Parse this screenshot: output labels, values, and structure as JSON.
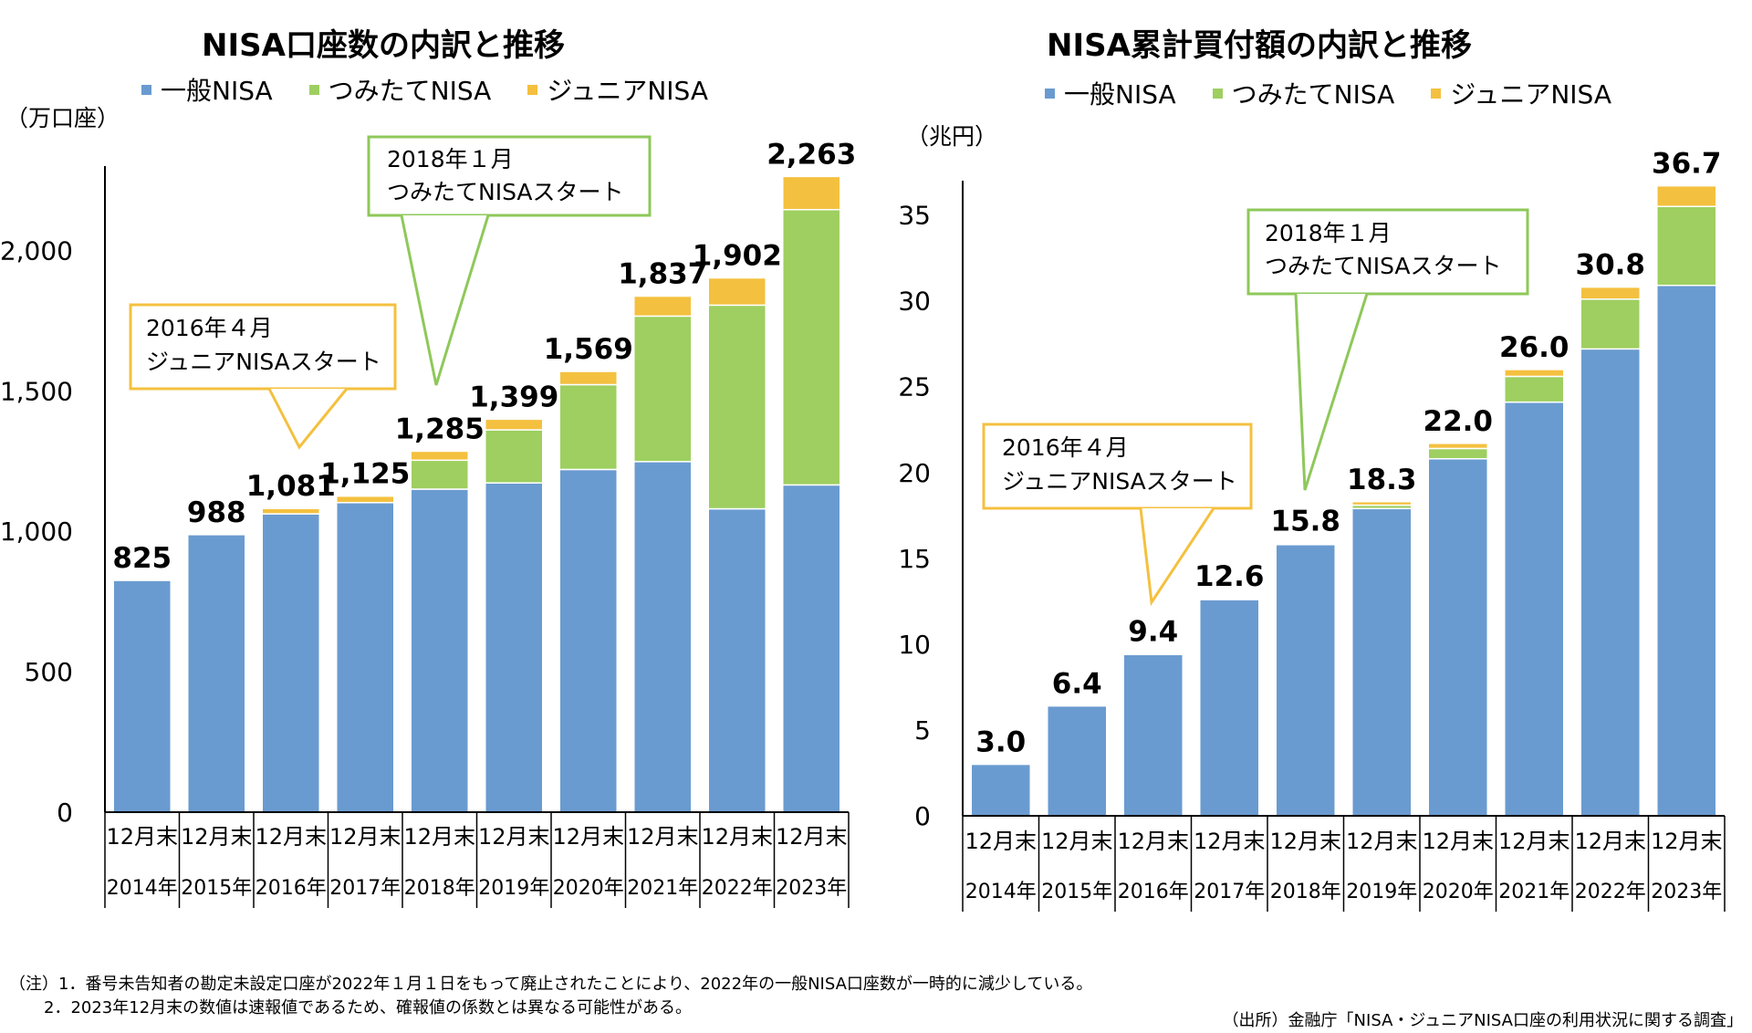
{
  "colors": {
    "ippan": "#6a9bd0",
    "tsumitate": "#9ecf60",
    "junior": "#f4c03f",
    "callout_yellow": "#f4c03f",
    "callout_green": "#8ec85a"
  },
  "legend": [
    "一般NISA",
    "つみたてNISA",
    "ジュニアNISA"
  ],
  "x_categories_line1": [
    "12月末",
    "12月末",
    "12月末",
    "12月末",
    "12月末",
    "12月末",
    "12月末",
    "12月末",
    "12月末",
    "12月末"
  ],
  "chart_data": [
    {
      "type": "bar",
      "stacked": true,
      "title": "NISA口座数の内訳と推移",
      "ylabel": "（万口座）",
      "ylim": [
        0,
        2300
      ],
      "yticks": [
        0,
        500,
        1000,
        1500,
        2000
      ],
      "ytick_labels": [
        "0",
        "500",
        "1,000",
        "1,500",
        "2,000"
      ],
      "categories": [
        "2014年",
        "2015年",
        "2016年",
        "2017年",
        "2018年",
        "2019年",
        "2020年",
        "2021年",
        "2022年",
        "2023年"
      ],
      "series": [
        {
          "name": "一般NISA",
          "values": [
            825,
            988,
            1062,
            1102,
            1150,
            1172,
            1220,
            1248,
            1080,
            1165
          ]
        },
        {
          "name": "つみたてNISA",
          "values": [
            0,
            0,
            0,
            0,
            103,
            189,
            302,
            518,
            725,
            980
          ]
        },
        {
          "name": "ジュニアNISA",
          "values": [
            0,
            0,
            19,
            23,
            32,
            38,
            47,
            71,
            97,
            118
          ]
        }
      ],
      "totals": [
        "825",
        "988",
        "1,081",
        "1,125",
        "1,285",
        "1,399",
        "1,569",
        "1,837",
        "1,902",
        "2,263"
      ],
      "callouts": [
        {
          "line1": "2016年４月",
          "line2": "ジュニアNISAスタート"
        },
        {
          "line1": "2018年１月",
          "line2": "つみたてNISAスタート"
        }
      ]
    },
    {
      "type": "bar",
      "stacked": true,
      "title": "NISA累計買付額の内訳と推移",
      "ylabel": "（兆円）",
      "ylim": [
        0,
        37
      ],
      "yticks": [
        0,
        5,
        10,
        15,
        20,
        25,
        30,
        35
      ],
      "ytick_labels": [
        "0",
        "5",
        "10",
        "15",
        "20",
        "25",
        "30",
        "35"
      ],
      "categories": [
        "2014年",
        "2015年",
        "2016年",
        "2017年",
        "2018年",
        "2019年",
        "2020年",
        "2021年",
        "2022年",
        "2023年"
      ],
      "series": [
        {
          "name": "一般NISA",
          "values": [
            3.0,
            6.4,
            9.4,
            12.6,
            15.8,
            17.9,
            20.8,
            24.1,
            27.2,
            30.9
          ]
        },
        {
          "name": "つみたてNISA",
          "values": [
            0,
            0,
            0,
            0,
            0.02,
            0.2,
            0.6,
            1.5,
            2.9,
            4.6
          ]
        },
        {
          "name": "ジュニアNISA",
          "values": [
            0,
            0,
            0.04,
            0.05,
            0.05,
            0.2,
            0.3,
            0.4,
            0.7,
            1.2
          ]
        }
      ],
      "totals": [
        "3.0",
        "6.4",
        "9.4",
        "12.6",
        "15.8",
        "18.3",
        "22.0",
        "26.0",
        "30.8",
        "36.7"
      ],
      "callouts": [
        {
          "line1": "2016年４月",
          "line2": "ジュニアNISAスタート"
        },
        {
          "line1": "2018年１月",
          "line2": "つみたてNISAスタート"
        }
      ]
    }
  ],
  "footnotes": {
    "note1": "（注）1．番号未告知者の勘定未設定口座が2022年１月１日をもって廃止されたことにより、2022年の一般NISA口座数が一時的に減少している。",
    "note2": "2．2023年12月末の数値は速報値であるため、確報値の係数とは異なる可能性がある。",
    "source": "（出所）金融庁「NISA・ジュニアNISA口座の利用状況に関する調査」"
  }
}
